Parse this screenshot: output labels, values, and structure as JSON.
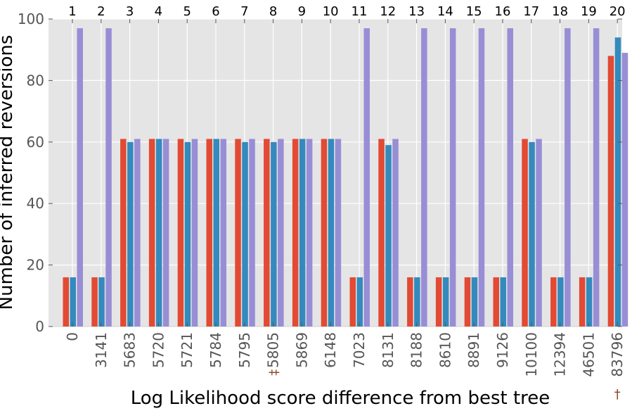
{
  "chart_data": {
    "type": "bar",
    "xlabel": "Log Likelihood score difference from best tree",
    "ylabel": "Number of inferred reversions",
    "ylim": [
      0,
      100
    ],
    "yticks": [
      "0",
      "20",
      "40",
      "60",
      "80",
      "100"
    ],
    "grid": true,
    "categories": [
      "0",
      "3141",
      "5683",
      "5720",
      "5721",
      "5784",
      "5795",
      "5805",
      "5869",
      "6148",
      "7023",
      "8131",
      "8188",
      "8610",
      "8891",
      "9126",
      "10100",
      "12394",
      "46501",
      "83796"
    ],
    "top_labels": [
      "1",
      "2",
      "3",
      "4",
      "5",
      "6",
      "7",
      "8",
      "9",
      "10",
      "11",
      "12",
      "13",
      "14",
      "15",
      "16",
      "17",
      "18",
      "19",
      "20"
    ],
    "markers": [
      {
        "category_index": 7,
        "symbol": "‡"
      },
      {
        "category_index": 19,
        "symbol": "†"
      }
    ],
    "series": [
      {
        "color": "#E24A33",
        "values": [
          16,
          16,
          61,
          61,
          61,
          61,
          61,
          61,
          61,
          61,
          16,
          61,
          16,
          16,
          16,
          16,
          61,
          16,
          16,
          88
        ]
      },
      {
        "color": "#348ABD",
        "values": [
          16,
          16,
          60,
          61,
          60,
          61,
          60,
          60,
          61,
          61,
          16,
          59,
          16,
          16,
          16,
          16,
          60,
          16,
          16,
          94
        ]
      },
      {
        "color": "#988ED5",
        "values": [
          97,
          97,
          61,
          61,
          61,
          61,
          61,
          61,
          61,
          61,
          97,
          61,
          97,
          97,
          97,
          97,
          61,
          97,
          97,
          89
        ]
      }
    ]
  }
}
